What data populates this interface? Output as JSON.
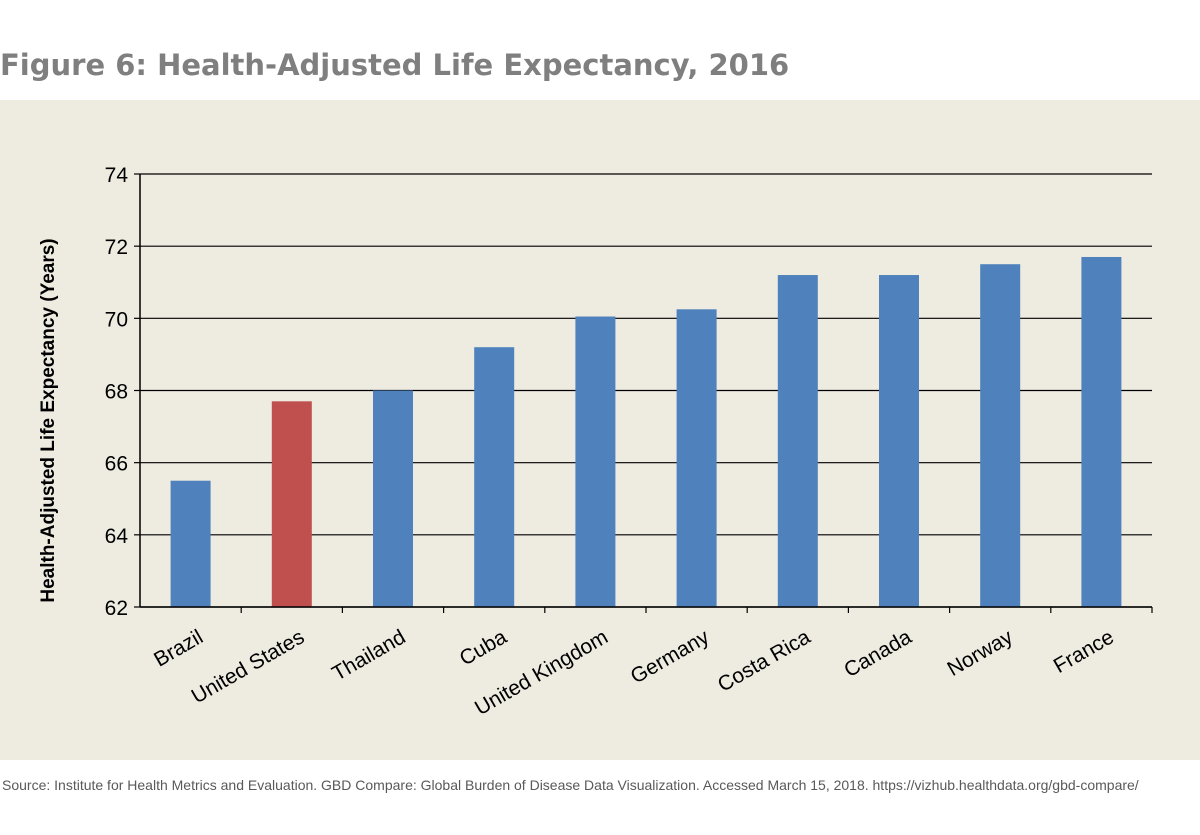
{
  "title": "Figure 6: Health-Adjusted Life Expectancy, 2016",
  "source": "Source: Institute for Health Metrics and Evaluation. GBD Compare: Global Burden of Disease Data Visualization. Accessed March 15, 2018. https://vizhub.healthdata.org/gbd-compare/",
  "colors": {
    "panel_bg": "#eeebe1",
    "default_bar": "#4f81bd",
    "highlight_bar": "#c0504d",
    "title": "#7f7f7f"
  },
  "chart_data": {
    "type": "bar",
    "title": "Figure 6: Health-Adjusted Life Expectancy, 2016",
    "xlabel": "",
    "ylabel": "Health-Adjusted Life Expectancy (Years)",
    "ylim": [
      62,
      74
    ],
    "yticks": [
      62,
      64,
      66,
      68,
      70,
      72,
      74
    ],
    "grid": true,
    "legend": "none",
    "categories": [
      "Brazil",
      "United States",
      "Thailand",
      "Cuba",
      "United Kingdom",
      "Germany",
      "Costa Rica",
      "Canada",
      "Norway",
      "France"
    ],
    "values": [
      65.5,
      67.7,
      68.0,
      69.2,
      70.05,
      70.25,
      71.2,
      71.2,
      71.5,
      71.7
    ],
    "highlight": "United States"
  }
}
